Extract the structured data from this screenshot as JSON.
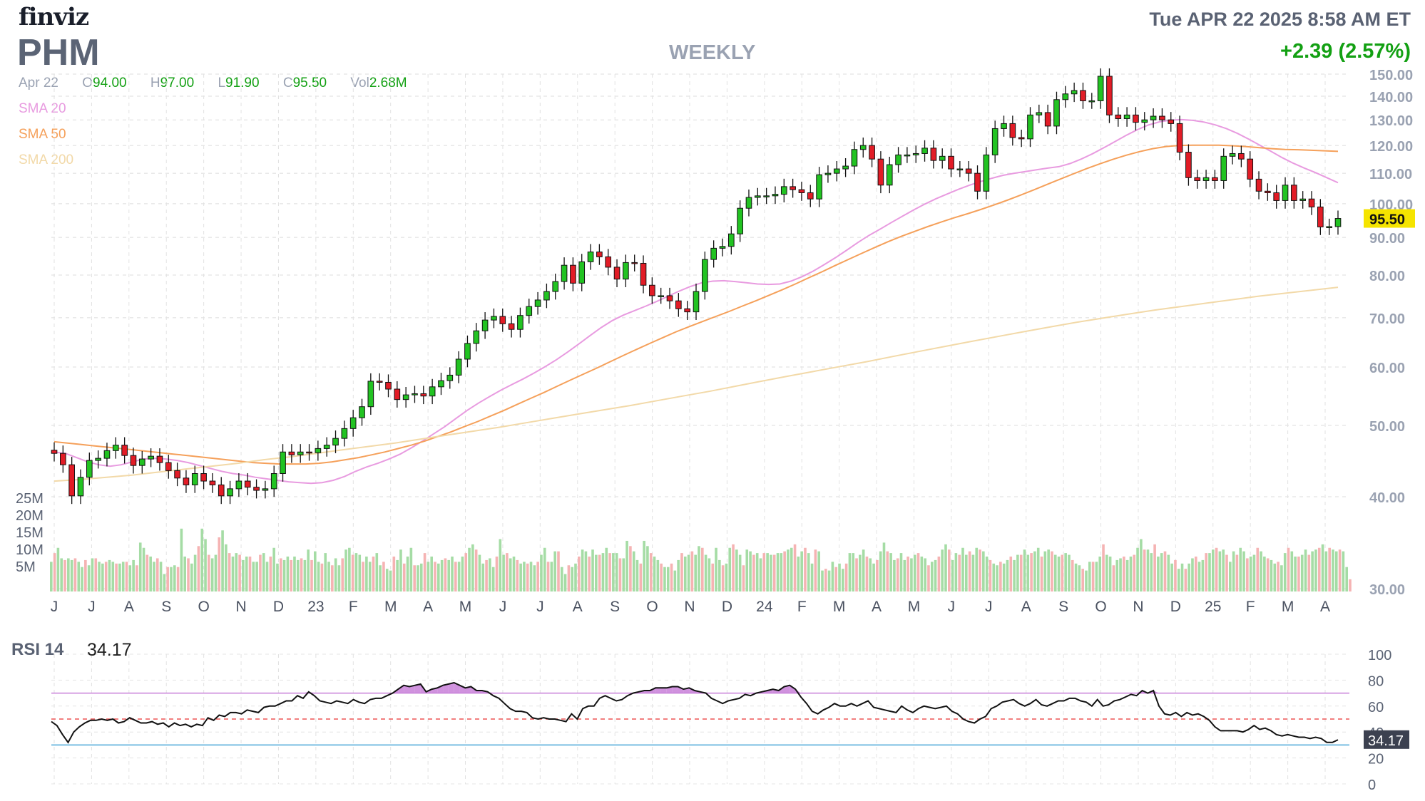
{
  "header": {
    "logo": "finviz",
    "ticker": "PHM",
    "period": "WEEKLY",
    "datetime": "Tue APR 22 2025 8:58 AM ET",
    "change": "+2.39 (2.57%)"
  },
  "ohlc": {
    "date": "Apr 22",
    "open_label": "O",
    "open": "94.00",
    "high_label": "H",
    "high": "97.00",
    "low_label": "L",
    "low": "91.90",
    "close_label": "C",
    "close": "95.50",
    "vol_label": "Vol",
    "vol": "2.68M"
  },
  "legend": [
    {
      "name": "SMA 20",
      "color": "#e89be0"
    },
    {
      "name": "SMA 50",
      "color": "#f5a05a"
    },
    {
      "name": "SMA 200",
      "color": "#f2d9a8"
    }
  ],
  "rsi": {
    "label": "RSI 14",
    "value": "34.17"
  },
  "colors": {
    "up": "#22c322",
    "down": "#e21c26",
    "vol_up": "#a5dca5",
    "vol_down": "#f5b3b3",
    "rsi_line": "#111111",
    "rsi_band": "#c87fd8",
    "last_price_bg": "#f5e400"
  },
  "chart_data": [
    {
      "type": "candlestick",
      "title": "PHM",
      "y_axis": {
        "scale": "log",
        "ylim": [
          30,
          150
        ],
        "ticks": [
          "150.00",
          "140.00",
          "130.00",
          "120.00",
          "110.00",
          "100.00",
          "90.00",
          "80.00",
          "70.00",
          "60.00",
          "50.00",
          "40.00",
          "30.00"
        ]
      },
      "x_labels": [
        "J",
        "J",
        "A",
        "S",
        "O",
        "N",
        "D",
        "23",
        "F",
        "M",
        "A",
        "M",
        "J",
        "J",
        "A",
        "S",
        "O",
        "N",
        "D",
        "24",
        "F",
        "M",
        "A",
        "M",
        "J",
        "J",
        "A",
        "S",
        "O",
        "N",
        "D",
        "25",
        "F",
        "M",
        "A"
      ],
      "last_price": "95.50",
      "closes": [
        45.8,
        44.2,
        40.1,
        42.5,
        44.8,
        45.1,
        46.2,
        47.0,
        45.5,
        44.1,
        45.0,
        45.4,
        44.5,
        43.4,
        42.4,
        41.5,
        43.0,
        42.0,
        41.5,
        40.1,
        41.0,
        42.0,
        41.2,
        40.8,
        41.0,
        43.0,
        46.0,
        45.6,
        46.0,
        45.9,
        46.5,
        47.0,
        48.0,
        49.5,
        51.2,
        53.0,
        57.4,
        57.2,
        56.0,
        54.2,
        55.0,
        55.2,
        54.8,
        56.4,
        57.5,
        58.5,
        61.5,
        64.6,
        67.2,
        69.5,
        70.3,
        68.7,
        67.5,
        70.5,
        72.5,
        74.0,
        76.0,
        78.4,
        82.5,
        78.0,
        83.4,
        86.0,
        84.7,
        82.0,
        79.0,
        83.2,
        83.0,
        77.5,
        75.0,
        75.0,
        73.8,
        72.0,
        71.3,
        76.0,
        84.0,
        87.0,
        87.5,
        91.0,
        98.6,
        102.0,
        102.5,
        102.5,
        103.0,
        105.5,
        104.5,
        103.5,
        101.5,
        109.5,
        110.0,
        111.5,
        112.5,
        118.5,
        120.0,
        115.0,
        106.0,
        113.0,
        116.5,
        116.5,
        117.0,
        119.0,
        114.5,
        116.0,
        111.5,
        111.5,
        110.0,
        104.0,
        116.5,
        126.5,
        128.5,
        123.0,
        122.5,
        132.0,
        133.0,
        127.5,
        138.5,
        141.0,
        142.5,
        138.0,
        138.0,
        149.0,
        132.0,
        130.5,
        132.0,
        129.0,
        130.0,
        131.5,
        130.0,
        128.5,
        117.5,
        108.5,
        107.5,
        108.5,
        107.5,
        116.0,
        117.0,
        115.0,
        108.0,
        104.0,
        103.5,
        101.0,
        106.0,
        101.0,
        101.5,
        99.0,
        93.0,
        93.1,
        95.5
      ],
      "volumes_millions": [
        8.5,
        11.0,
        12.5,
        9.5,
        9.0,
        9.5,
        9.0,
        9.5,
        8.5,
        7.0,
        9.0,
        7.5,
        9.5,
        9.5,
        8.5,
        8.0,
        8.5,
        9.0,
        8.5,
        8.0,
        8.0,
        8.5,
        8.5,
        7.5,
        9.0,
        7.5,
        14.0,
        12.5,
        10.5,
        10.0,
        8.5,
        9.5,
        8.5,
        5.0,
        7.0,
        7.0,
        7.5,
        7.0,
        18.0,
        10.0,
        9.5,
        8.0,
        10.5,
        13.0,
        18.0,
        15.0,
        10.5,
        9.5,
        10.5,
        15.5,
        17.5,
        13.5,
        11.0,
        10.0,
        11.0,
        10.5,
        9.0,
        10.0,
        10.0,
        8.5,
        8.5,
        10.5,
        11.0,
        8.5,
        10.0,
        12.5,
        8.0,
        9.5,
        9.0,
        10.0,
        9.0,
        10.0,
        9.0,
        9.5,
        9.0,
        12.0,
        9.0,
        11.5,
        8.5,
        8.0,
        11.0,
        8.5,
        7.5,
        9.5,
        7.5,
        9.5,
        12.0,
        12.5,
        10.5,
        11.0,
        10.5,
        8.5,
        10.0,
        8.5,
        10.0,
        11.0,
        7.5,
        8.5,
        6.5,
        6.0,
        10.0,
        9.0,
        12.0,
        8.0,
        10.0,
        12.5,
        7.5,
        7.5,
        8.0,
        11.0,
        8.5,
        10.0,
        8.5,
        8.0,
        9.0,
        9.5,
        9.0,
        10.0,
        8.5,
        8.5,
        10.0,
        11.0,
        12.5,
        13.5,
        12.0,
        10.5,
        8.0,
        9.0,
        9.5,
        7.0,
        10.0,
        15.0,
        10.5,
        11.0,
        9.5,
        10.0,
        9.0,
        8.0,
        8.5,
        8.0,
        8.5,
        7.5,
        8.5,
        10.5,
        12.5,
        8.5,
        8.5,
        11.5,
        11.5,
        7.0,
        5.0,
        7.5,
        7.0,
        8.0,
        10.0,
        12.0,
        11.5,
        10.0,
        12.0,
        10.5,
        10.5,
        11.0,
        12.5,
        11.0,
        11.0,
        11.0,
        9.5,
        9.5,
        14.5,
        13.0,
        11.5,
        9.0,
        8.0,
        14.5,
        13.0,
        11.0,
        10.0,
        9.0,
        8.0,
        7.0,
        7.0,
        8.0,
        6.0,
        9.0,
        11.0,
        10.0,
        10.5,
        11.5,
        10.5,
        13.0,
        12.5,
        10.5,
        9.5,
        8.0,
        12.5,
        9.0,
        7.5,
        8.0,
        12.5,
        13.5,
        12.0,
        10.5,
        7.5,
        12.0,
        11.5,
        10.5,
        11.0,
        9.5,
        11.0,
        11.0,
        10.5,
        10.5,
        11.0,
        11.0,
        11.5,
        12.0,
        12.5,
        13.5,
        10.0,
        11.5,
        12.5,
        11.0,
        8.0,
        12.0,
        11.5,
        6.0,
        6.5,
        6.0,
        8.5,
        7.0,
        8.0,
        6.5,
        8.0,
        11.0,
        11.0,
        9.5,
        10.5,
        12.0,
        10.0,
        9.5,
        8.0,
        9.0,
        11.5,
        14.0,
        11.5,
        11.0,
        9.0,
        9.5,
        11.0,
        9.0,
        10.0,
        9.5,
        10.5,
        11.0,
        10.0,
        9.5,
        7.5,
        8.5,
        9.0,
        10.0,
        12.0,
        13.5,
        12.0,
        9.0,
        11.0,
        10.5,
        12.5,
        10.5,
        11.5,
        10.5,
        12.5,
        12.0,
        11.5,
        10.0,
        9.0,
        8.0,
        7.5,
        8.5,
        8.0,
        9.0,
        10.0,
        9.0,
        10.5,
        10.5,
        12.0,
        10.5,
        11.0,
        11.5,
        12.5,
        10.0,
        11.5,
        12.0,
        11.5,
        10.5,
        10.0,
        10.5,
        11.0,
        10.5,
        9.0,
        8.0,
        7.5,
        6.5,
        6.0,
        8.5,
        8.5,
        8.5,
        10.0,
        13.5,
        10.5,
        10.0,
        7.5,
        9.0,
        9.5,
        10.0,
        9.0,
        10.0,
        10.5,
        12.5,
        15.0,
        12.0,
        12.0,
        11.0,
        13.5,
        10.0,
        11.0,
        11.5,
        10.5,
        8.0,
        9.0,
        6.5,
        8.0,
        6.5,
        8.0,
        9.5,
        10.0,
        8.5,
        9.0,
        11.0,
        11.0,
        12.0,
        12.5,
        11.5,
        12.0,
        10.5,
        8.5,
        11.5,
        10.5,
        12.5,
        11.5,
        9.5,
        10.0,
        10.5,
        12.5,
        11.5,
        10.0,
        9.5,
        9.0,
        8.0,
        8.5,
        7.5,
        11.0,
        12.5,
        11.5,
        10.0,
        10.0,
        10.5,
        12.0,
        10.5,
        11.5,
        12.0,
        12.5,
        13.5,
        11.5,
        12.5,
        12.0,
        11.5,
        12.0,
        11.5,
        7.0,
        3.5
      ],
      "volume_axis": {
        "ticks": [
          "25M",
          "20M",
          "15M",
          "10M",
          "5M"
        ]
      },
      "series": [
        {
          "name": "SMA 20",
          "values": [
            46.0,
            45.8,
            45.2,
            44.6,
            44.2,
            44.0,
            44.2,
            44.6,
            45.0,
            45.1,
            45.0,
            44.8,
            44.5,
            44.1,
            43.7,
            43.3,
            43.0,
            42.8,
            42.5,
            42.3,
            42.1,
            41.9,
            41.8,
            41.7,
            41.8,
            42.1,
            42.6,
            43.3,
            43.9,
            44.4,
            45.0,
            45.7,
            46.6,
            47.6,
            48.7,
            49.8,
            51.1,
            52.4,
            53.6,
            54.7,
            55.8,
            56.8,
            57.8,
            58.9,
            60.1,
            61.4,
            62.9,
            64.5,
            66.2,
            67.9,
            69.4,
            70.6,
            71.6,
            72.6,
            73.7,
            74.9,
            76.1,
            77.2,
            78.1,
            78.5,
            78.6,
            78.4,
            78.1,
            77.8,
            77.7,
            77.8,
            78.5,
            79.6,
            81.0,
            82.7,
            84.5,
            86.5,
            88.6,
            90.6,
            92.4,
            94.3,
            96.2,
            98.1,
            99.9,
            101.6,
            103.1,
            104.6,
            106.0,
            107.2,
            108.3,
            109.3,
            110.0,
            110.6,
            111.2,
            111.8,
            112.3,
            113.4,
            115.0,
            116.9,
            119.1,
            121.4,
            123.8,
            126.0,
            127.9,
            129.2,
            129.9,
            130.1,
            129.8,
            129.1,
            128.0,
            126.5,
            124.6,
            122.4,
            120.1,
            117.8,
            115.5,
            113.5,
            111.8,
            110.2,
            108.5,
            106.8
          ]
        },
        {
          "name": "SMA 50",
          "values": [
            47.5,
            47.3,
            47.1,
            46.9,
            46.7,
            46.5,
            46.3,
            46.1,
            45.9,
            45.7,
            45.5,
            45.3,
            45.1,
            44.9,
            44.7,
            44.5,
            44.4,
            44.3,
            44.3,
            44.3,
            44.4,
            44.6,
            44.9,
            45.2,
            45.6,
            46.0,
            46.5,
            47.0,
            47.6,
            48.3,
            49.0,
            49.8,
            50.6,
            51.5,
            52.4,
            53.4,
            54.4,
            55.4,
            56.5,
            57.6,
            58.7,
            59.8,
            61.0,
            62.2,
            63.4,
            64.6,
            65.8,
            67.0,
            68.1,
            69.2,
            70.3,
            71.4,
            72.6,
            73.8,
            75.1,
            76.4,
            77.8,
            79.3,
            80.8,
            82.4,
            84.0,
            85.6,
            87.2,
            88.8,
            90.3,
            91.7,
            93.1,
            94.4,
            95.7,
            96.9,
            98.2,
            99.6,
            101.1,
            102.7,
            104.4,
            106.2,
            108.0,
            109.8,
            111.6,
            113.3,
            114.9,
            116.4,
            117.7,
            118.8,
            119.6,
            120.0,
            120.1,
            120.1,
            120.1,
            119.9,
            119.6,
            119.2,
            118.8,
            118.5,
            118.4,
            118.2,
            118.0,
            117.8
          ]
        },
        {
          "name": "SMA 200",
          "values": [
            42.0,
            42.2,
            42.5,
            42.8,
            43.2,
            43.6,
            44.0,
            44.4,
            44.9,
            45.3,
            45.8,
            46.3,
            46.8,
            47.3,
            47.9,
            48.5,
            49.1,
            49.7,
            50.4,
            51.1,
            51.8,
            52.5,
            53.2,
            54.0,
            54.8,
            55.6,
            56.5,
            57.4,
            58.3,
            59.2,
            60.1,
            61.0,
            62.0,
            63.0,
            64.0,
            65.0,
            66.0,
            67.0,
            68.0,
            69.0,
            69.9,
            70.8,
            71.7,
            72.5,
            73.3,
            74.1,
            74.9,
            75.6,
            76.3,
            77.0
          ]
        }
      ]
    },
    {
      "type": "line",
      "title": "RSI 14",
      "y_axis": {
        "ylim": [
          0,
          100
        ],
        "ticks": [
          "100",
          "80",
          "60",
          "40",
          "20",
          "0"
        ]
      },
      "reference_lines": [
        70,
        50,
        30
      ],
      "last_value": "34.17",
      "values": [
        48,
        45,
        38,
        32,
        40,
        44,
        47,
        49,
        49,
        50,
        49,
        50,
        47,
        48,
        51,
        49,
        47,
        47,
        48,
        46,
        47,
        44,
        47,
        45,
        46,
        44,
        46,
        45,
        51,
        49,
        53,
        52,
        55,
        55,
        54,
        57,
        56,
        55,
        59,
        60,
        60,
        62,
        64,
        64,
        68,
        66,
        71,
        68,
        64,
        63,
        62,
        64,
        63,
        62,
        65,
        63,
        62,
        65,
        66,
        66,
        68,
        70,
        73,
        76,
        75,
        76,
        77,
        71,
        73,
        74,
        76,
        77,
        78,
        76,
        74,
        75,
        72,
        72,
        71,
        68,
        66,
        62,
        58,
        56,
        56,
        55,
        51,
        50,
        51,
        50,
        50,
        49,
        48,
        54,
        50,
        58,
        60,
        60,
        66,
        68,
        66,
        64,
        65,
        68,
        70,
        71,
        72,
        72,
        74,
        74,
        74,
        75,
        75,
        73,
        74,
        72,
        71,
        70,
        66,
        64,
        62,
        64,
        65,
        66,
        69,
        68,
        70,
        71,
        72,
        73,
        72,
        75,
        76,
        73,
        67,
        62,
        56,
        54,
        57,
        59,
        62,
        60,
        60,
        62,
        60,
        62,
        64,
        59,
        58,
        57,
        56,
        55,
        60,
        57,
        55,
        58,
        60,
        59,
        58,
        59,
        60,
        56,
        54,
        50,
        48,
        47,
        50,
        52,
        58,
        60,
        63,
        64,
        65,
        62,
        60,
        62,
        65,
        61,
        60,
        62,
        64,
        64,
        66,
        66,
        64,
        63,
        60,
        65,
        60,
        61,
        64,
        65,
        67,
        69,
        68,
        72,
        70,
        72,
        60,
        54,
        53,
        55,
        52,
        55,
        53,
        54,
        52,
        49,
        44,
        41,
        41,
        41,
        41,
        40,
        42,
        45,
        42,
        43,
        41,
        38,
        37,
        38,
        37,
        36,
        36,
        35,
        36,
        35,
        32,
        32,
        34
      ]
    }
  ]
}
